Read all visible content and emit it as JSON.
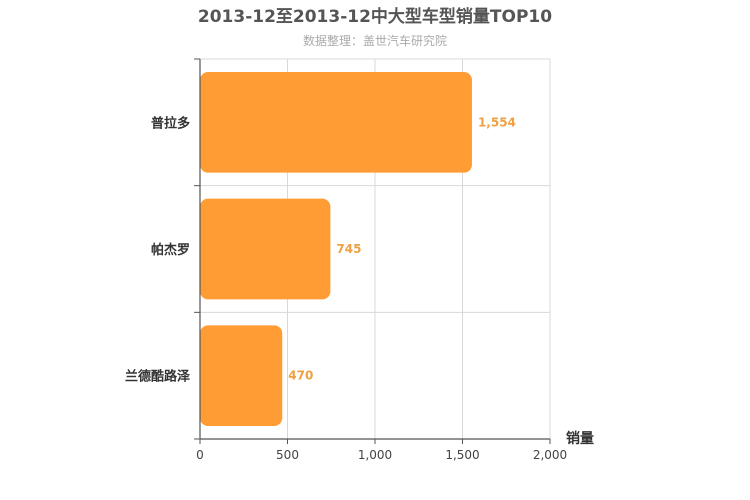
{
  "chart_data": {
    "type": "bar",
    "orientation": "horizontal",
    "title": "2013-12至2013-12中大型车型销量TOP10",
    "subtitle": "数据整理：盖世汽车研究院",
    "categories": [
      "普拉多",
      "帕杰罗",
      "兰德酷路泽"
    ],
    "values": [
      1554,
      745,
      470
    ],
    "data_labels": [
      "1,554",
      "745",
      "470"
    ],
    "xlabel": "销量",
    "ylabel": "",
    "xlim": [
      0,
      2000
    ],
    "xticks": [
      0,
      500,
      1000,
      1500,
      2000
    ],
    "xtick_labels": [
      "0",
      "500",
      "1,000",
      "1,500",
      "2,000"
    ],
    "grid": true,
    "legend": "none",
    "bar_color": "#ff9c33",
    "label_color": "#f0a040"
  }
}
